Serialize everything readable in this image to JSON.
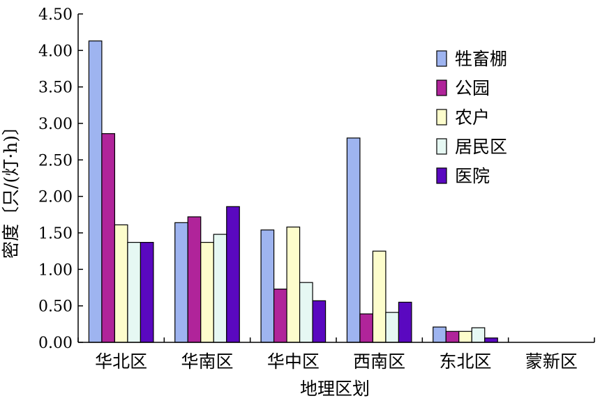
{
  "chart_data": {
    "type": "bar",
    "title": "",
    "xlabel": "地理区划",
    "ylabel": "密度〔只/(灯·h)〕",
    "ylim": [
      0,
      4.5
    ],
    "yticks": [
      "0.00",
      "0.50",
      "1.00",
      "1.50",
      "2.00",
      "2.50",
      "3.00",
      "3.50",
      "4.00",
      "4.50"
    ],
    "categories": [
      "华北区",
      "华南区",
      "华中区",
      "西南区",
      "东北区",
      "蒙新区"
    ],
    "series": [
      {
        "name": "牲畜棚",
        "color": "#9eb4f0",
        "values": [
          4.13,
          1.64,
          1.54,
          2.8,
          0.21,
          0
        ]
      },
      {
        "name": "公园",
        "color": "#b0249a",
        "values": [
          2.86,
          1.72,
          0.73,
          0.39,
          0.15,
          0
        ]
      },
      {
        "name": "农户",
        "color": "#fdfdcc",
        "values": [
          1.61,
          1.37,
          1.58,
          1.25,
          0.15,
          0
        ]
      },
      {
        "name": "居民区",
        "color": "#e6f8f3",
        "values": [
          1.37,
          1.48,
          0.82,
          0.41,
          0.2,
          0
        ]
      },
      {
        "name": "医院",
        "color": "#5a08c0",
        "values": [
          1.37,
          1.86,
          0.57,
          0.55,
          0.06,
          0
        ]
      }
    ],
    "grid": false,
    "legend_position": "top-right"
  }
}
